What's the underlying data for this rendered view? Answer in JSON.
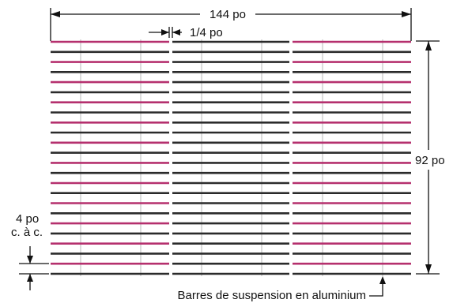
{
  "labels": {
    "overall_width": "144 po",
    "gap": "1/4 po",
    "overall_height": "92 po",
    "spacing_line1": "4 po",
    "spacing_line2": "c. à c.",
    "hanger_bars": "Barres de suspension en aluminium"
  },
  "colors": {
    "pink": "#b5306e",
    "dark": "#2b2b2b",
    "hanger": "#b9b9b9",
    "ink": "#111111"
  },
  "panels": {
    "count": 3,
    "rows": 24,
    "color_sequence": [
      "pink",
      "dark",
      "pink",
      "dark",
      "pink",
      "dark",
      "pink",
      "dark",
      "pink",
      "dark",
      "pink",
      "dark",
      "pink",
      "dark",
      "pink",
      "dark",
      "pink",
      "dark",
      "pink",
      "dark",
      "pink",
      "dark",
      "pink",
      "dark"
    ],
    "middle_panel_color": "dark",
    "hanger_bars_per_panel": 2
  }
}
